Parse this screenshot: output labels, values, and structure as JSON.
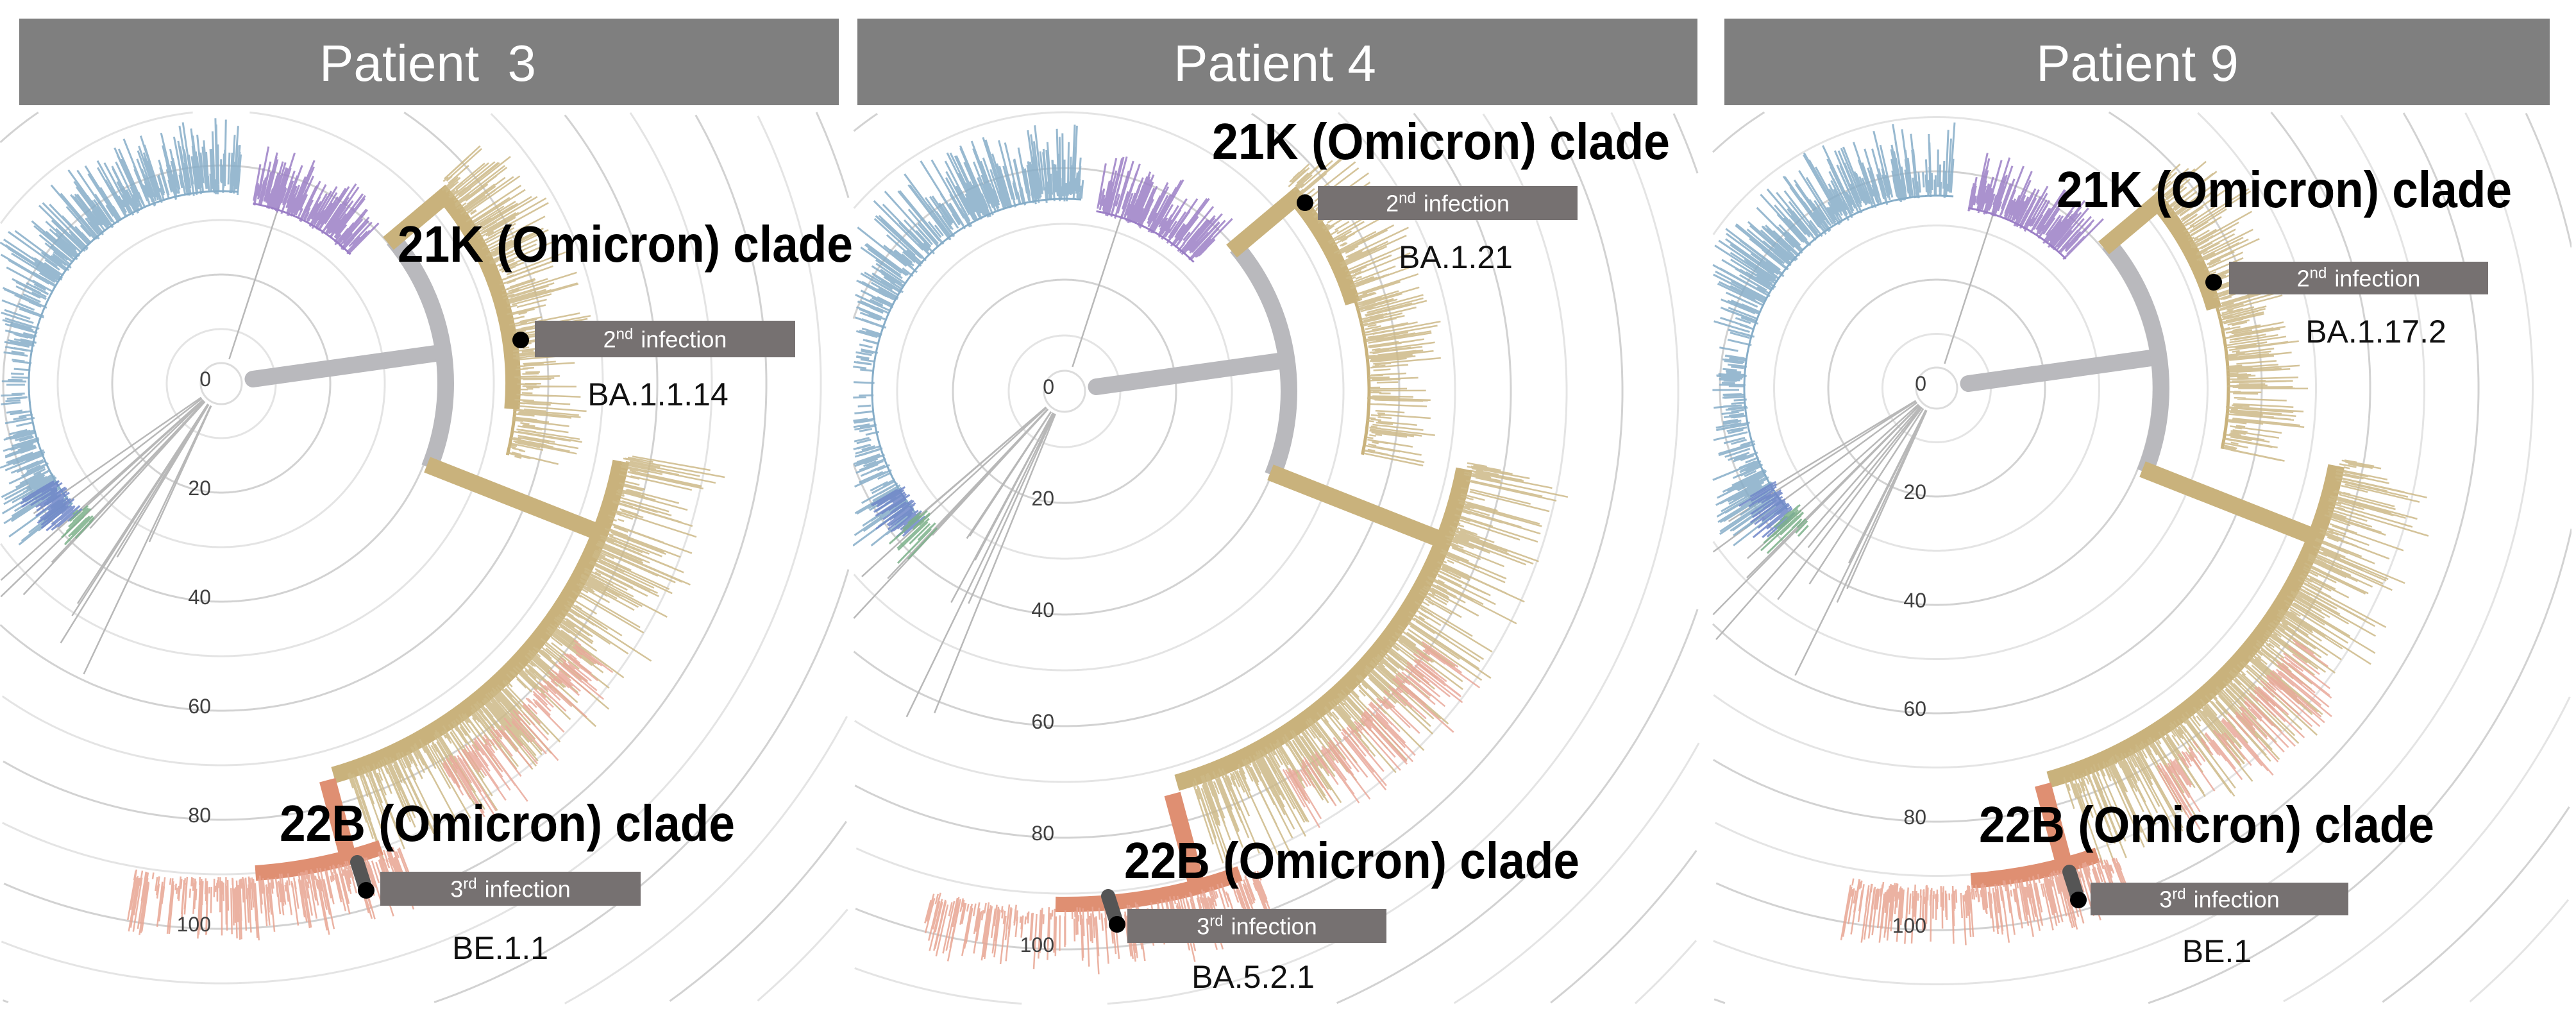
{
  "figure": {
    "panels": [
      {
        "title": "Patient  3",
        "clade_upper": "21K (Omicron) clade",
        "clade_lower": "22B (Omicron) clade",
        "second_infection": {
          "ordinal": "2",
          "suffix": "nd",
          "label": "infection",
          "lineage": "BA.1.1.14"
        },
        "third_infection": {
          "ordinal": "3",
          "suffix": "rd",
          "label": "infection",
          "lineage": "BE.1.1"
        }
      },
      {
        "title": "Patient 4",
        "clade_upper": "21K (Omicron) clade",
        "clade_lower": "22B (Omicron) clade",
        "second_infection": {
          "ordinal": "2",
          "suffix": "nd",
          "label": "infection",
          "lineage": "BA.1.21"
        },
        "third_infection": {
          "ordinal": "3",
          "suffix": "rd",
          "label": "infection",
          "lineage": "BA.5.2.1"
        }
      },
      {
        "title": "Patient 9",
        "clade_upper": "21K (Omicron) clade",
        "clade_lower": "22B (Omicron) clade",
        "second_infection": {
          "ordinal": "2",
          "suffix": "nd",
          "label": "infection",
          "lineage": "BA.1.17.2"
        },
        "third_infection": {
          "ordinal": "3",
          "suffix": "rd",
          "label": "infection",
          "lineage": "BE.1"
        }
      }
    ],
    "radial_axis_ticks": [
      "0",
      "20",
      "40",
      "60",
      "80",
      "100"
    ]
  },
  "colors": {
    "header": "#7f7f7f",
    "ring": "#dcdcdc",
    "root_branch": "#b9b9bd",
    "clade_21K": "#c9b27c",
    "clade_22B": "#df8f72",
    "early_blue": "#86adc8",
    "early_purple": "#9b7fc6",
    "pink": "#e9a89a",
    "infection_box": "#767171",
    "marker": "#000000"
  }
}
